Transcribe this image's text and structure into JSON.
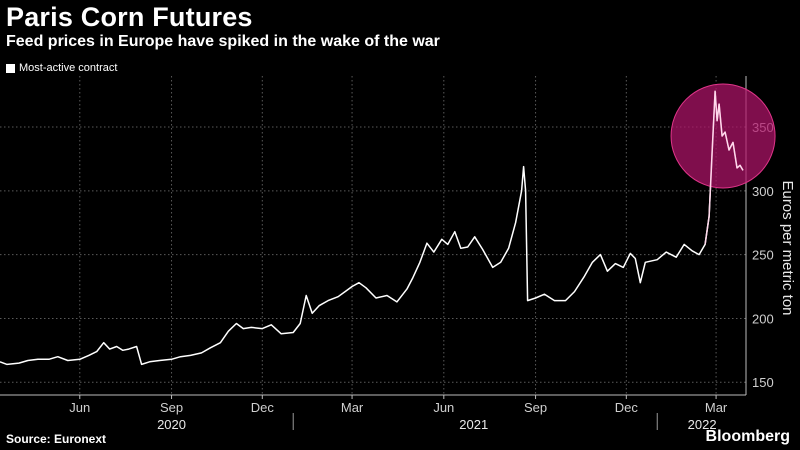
{
  "header": {
    "title": "Paris Corn Futures",
    "subtitle": "Feed prices in Europe have spiked in the wake of the war",
    "legend_label": "Most-active contract"
  },
  "footer": {
    "source": "Source: Euronext",
    "brand": "Bloomberg"
  },
  "colors": {
    "background": "#000000",
    "line": "#ffffff",
    "highlight_circle": "#b0146a",
    "grid": "#5a5a5a"
  },
  "chart_data": {
    "type": "line",
    "title": "Paris Corn Futures",
    "subtitle": "Feed prices in Europe have spiked in the wake of the war",
    "ylabel": "Euros per metric ton",
    "ylim": [
      140,
      390
    ],
    "yticks": [
      150,
      200,
      250,
      300,
      350
    ],
    "xlim": [
      "2020-03-13",
      "2022-03-31"
    ],
    "xticks": [
      {
        "date": "2020-06-01",
        "label": "Jun"
      },
      {
        "date": "2020-09-01",
        "label": "Sep"
      },
      {
        "date": "2020-12-01",
        "label": "Dec"
      },
      {
        "date": "2021-03-01",
        "label": "Mar"
      },
      {
        "date": "2021-06-01",
        "label": "Jun"
      },
      {
        "date": "2021-09-01",
        "label": "Sep"
      },
      {
        "date": "2021-12-01",
        "label": "Dec"
      },
      {
        "date": "2022-03-01",
        "label": "Mar"
      }
    ],
    "year_labels": [
      {
        "date": "2020-09-01",
        "label": "2020"
      },
      {
        "date": "2021-07-01",
        "label": "2021"
      },
      {
        "date": "2022-02-15",
        "label": "2022"
      }
    ],
    "year_dividers": [
      "2021-01-01",
      "2022-01-01"
    ],
    "grid": true,
    "legend_position": "top-left",
    "highlight": {
      "date": "2022-03-08",
      "value": 343,
      "note": "circled spike"
    },
    "series": [
      {
        "name": "Most-active contract",
        "points": [
          [
            "2020-03-13",
            166
          ],
          [
            "2020-03-20",
            164
          ],
          [
            "2020-04-01",
            165
          ],
          [
            "2020-04-10",
            167
          ],
          [
            "2020-04-20",
            168
          ],
          [
            "2020-05-01",
            168
          ],
          [
            "2020-05-10",
            170
          ],
          [
            "2020-05-20",
            167
          ],
          [
            "2020-06-01",
            168
          ],
          [
            "2020-06-10",
            171
          ],
          [
            "2020-06-18",
            174
          ],
          [
            "2020-06-25",
            181
          ],
          [
            "2020-07-01",
            176
          ],
          [
            "2020-07-08",
            178
          ],
          [
            "2020-07-14",
            175
          ],
          [
            "2020-07-20",
            176
          ],
          [
            "2020-07-28",
            178
          ],
          [
            "2020-08-02",
            164
          ],
          [
            "2020-08-10",
            166
          ],
          [
            "2020-08-20",
            167
          ],
          [
            "2020-09-01",
            168
          ],
          [
            "2020-09-10",
            170
          ],
          [
            "2020-09-20",
            171
          ],
          [
            "2020-10-01",
            173
          ],
          [
            "2020-10-10",
            177
          ],
          [
            "2020-10-20",
            181
          ],
          [
            "2020-10-28",
            190
          ],
          [
            "2020-11-05",
            196
          ],
          [
            "2020-11-12",
            192
          ],
          [
            "2020-11-20",
            193
          ],
          [
            "2020-12-01",
            192
          ],
          [
            "2020-12-10",
            195
          ],
          [
            "2020-12-20",
            188
          ],
          [
            "2021-01-01",
            189
          ],
          [
            "2021-01-08",
            196
          ],
          [
            "2021-01-14",
            218
          ],
          [
            "2021-01-20",
            204
          ],
          [
            "2021-01-27",
            210
          ],
          [
            "2021-02-05",
            214
          ],
          [
            "2021-02-15",
            217
          ],
          [
            "2021-02-22",
            221
          ],
          [
            "2021-03-01",
            225
          ],
          [
            "2021-03-08",
            228
          ],
          [
            "2021-03-15",
            224
          ],
          [
            "2021-03-25",
            216
          ],
          [
            "2021-04-05",
            218
          ],
          [
            "2021-04-15",
            213
          ],
          [
            "2021-04-25",
            223
          ],
          [
            "2021-05-01",
            232
          ],
          [
            "2021-05-08",
            244
          ],
          [
            "2021-05-15",
            259
          ],
          [
            "2021-05-22",
            252
          ],
          [
            "2021-05-30",
            262
          ],
          [
            "2021-06-05",
            258
          ],
          [
            "2021-06-12",
            268
          ],
          [
            "2021-06-18",
            255
          ],
          [
            "2021-06-25",
            256
          ],
          [
            "2021-07-02",
            264
          ],
          [
            "2021-07-10",
            254
          ],
          [
            "2021-07-20",
            240
          ],
          [
            "2021-07-28",
            244
          ],
          [
            "2021-08-05",
            255
          ],
          [
            "2021-08-12",
            275
          ],
          [
            "2021-08-18",
            300
          ],
          [
            "2021-08-20",
            319
          ],
          [
            "2021-08-22",
            300
          ],
          [
            "2021-08-24",
            214
          ],
          [
            "2021-09-01",
            216
          ],
          [
            "2021-09-10",
            219
          ],
          [
            "2021-09-20",
            214
          ],
          [
            "2021-10-01",
            214
          ],
          [
            "2021-10-10",
            221
          ],
          [
            "2021-10-20",
            233
          ],
          [
            "2021-10-28",
            244
          ],
          [
            "2021-11-05",
            250
          ],
          [
            "2021-11-12",
            237
          ],
          [
            "2021-11-20",
            243
          ],
          [
            "2021-11-28",
            240
          ],
          [
            "2021-12-05",
            251
          ],
          [
            "2021-12-10",
            247
          ],
          [
            "2021-12-15",
            228
          ],
          [
            "2021-12-20",
            244
          ],
          [
            "2022-01-01",
            246
          ],
          [
            "2022-01-10",
            252
          ],
          [
            "2022-01-20",
            248
          ],
          [
            "2022-01-28",
            258
          ],
          [
            "2022-02-05",
            253
          ],
          [
            "2022-02-12",
            250
          ],
          [
            "2022-02-18",
            258
          ],
          [
            "2022-02-22",
            280
          ],
          [
            "2022-02-25",
            330
          ],
          [
            "2022-02-28",
            378
          ],
          [
            "2022-03-02",
            355
          ],
          [
            "2022-03-04",
            368
          ],
          [
            "2022-03-07",
            343
          ],
          [
            "2022-03-10",
            346
          ],
          [
            "2022-03-14",
            332
          ],
          [
            "2022-03-18",
            338
          ],
          [
            "2022-03-22",
            318
          ],
          [
            "2022-03-25",
            320
          ],
          [
            "2022-03-28",
            316
          ]
        ]
      }
    ]
  }
}
